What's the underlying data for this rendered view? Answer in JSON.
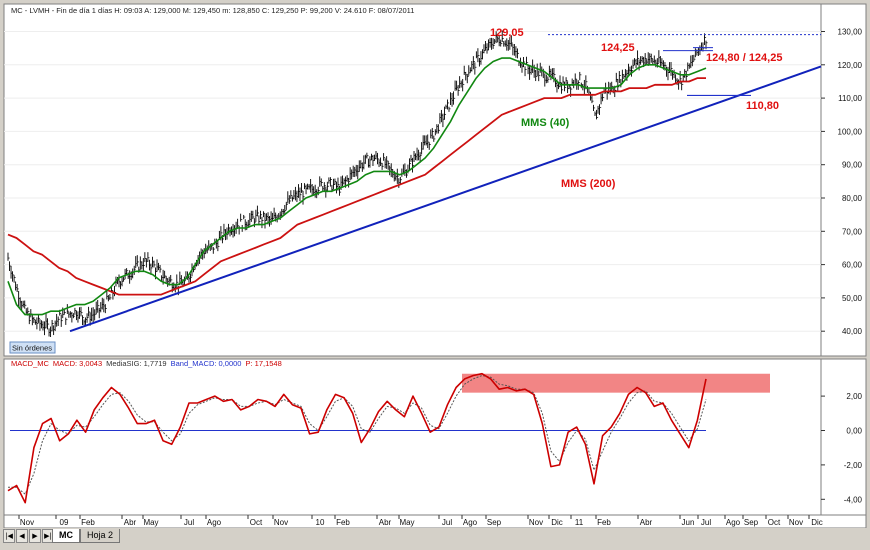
{
  "price_panel": {
    "header": "MC - LVMH - Fin de día 1 días H: 09:03 A: 129,000 M: 129,450 m: 128,850 C: 129,250 P: 99,200 V: 24.610 F: 08/07/2011",
    "status_label": "Sin órdenes"
  },
  "macd_panel": {
    "header_parts": [
      {
        "text": "MACD_MC",
        "color": "#cc0000"
      },
      {
        "text": "MACD: 3,0043",
        "color": "#cc0000"
      },
      {
        "text": "MediaSIG: 1,7719",
        "color": "#333333"
      },
      {
        "text": "Band_MACD: 0,0000",
        "color": "#2233cc"
      },
      {
        "text": "P: 17,1548",
        "color": "#cc0000"
      }
    ]
  },
  "chart_data": [
    {
      "type": "line",
      "subtype": "bar-ohlc-with-moving-averages",
      "x_axis": [
        "Nov",
        "09",
        "Feb",
        "Abr",
        "May",
        "Jul",
        "Ago",
        "Oct",
        "Nov",
        "10",
        "Feb",
        "Abr",
        "May",
        "Jul",
        "Ago",
        "Sep",
        "Nov",
        "Dic",
        "11",
        "Feb",
        "Abr",
        "Jun",
        "Jul",
        "Ago",
        "Sep",
        "Oct",
        "Nov",
        "Dic"
      ],
      "y_ticks": [
        "130,00",
        "120,00",
        "110,00",
        "100,00",
        "90,00",
        "80,00",
        "70,00",
        "60,00",
        "50,00",
        "40,00"
      ],
      "ylim": [
        35,
        132
      ],
      "grid": true,
      "series": [
        {
          "name": "",
          "style": "price-bars",
          "color": "#000000",
          "values": [
            62,
            53,
            46,
            43,
            42,
            41,
            44,
            45,
            46,
            44,
            45,
            47,
            50,
            55,
            57,
            59,
            61,
            60,
            57,
            55,
            54,
            55,
            61,
            64,
            65,
            68,
            71,
            72,
            73,
            74,
            74,
            73,
            76,
            79,
            81,
            82,
            83,
            84,
            84,
            83,
            86,
            89,
            91,
            92,
            91,
            88,
            86,
            89,
            93,
            96,
            99,
            104,
            109,
            114,
            118,
            121,
            124,
            127,
            128,
            126,
            122,
            119,
            118,
            117,
            116,
            114,
            114,
            116,
            113,
            104,
            112,
            113,
            116,
            119,
            121,
            122,
            121,
            120,
            118,
            115,
            119,
            124,
            128
          ]
        },
        {
          "name": "MMS (40)",
          "style": "line",
          "color": "#118811",
          "values": [
            55,
            48,
            45,
            45,
            45,
            46,
            46,
            47,
            48,
            48,
            49,
            51,
            53,
            56,
            57,
            58,
            58,
            57,
            55,
            54,
            54,
            56,
            60,
            64,
            66,
            68,
            70,
            71,
            71,
            72,
            72,
            73,
            74,
            76,
            78,
            80,
            81,
            82,
            82,
            83,
            84,
            85,
            87,
            88,
            88,
            88,
            87,
            88,
            90,
            92,
            95,
            99,
            103,
            108,
            112,
            116,
            119,
            121,
            122,
            122,
            121,
            120,
            119,
            118,
            116,
            114,
            114,
            114,
            113,
            113,
            113,
            113,
            114,
            117,
            119,
            120,
            120,
            119,
            118,
            117,
            117,
            118,
            119
          ]
        },
        {
          "name": "MMS (200)",
          "style": "line",
          "color": "#cc1111",
          "values": [
            69,
            68,
            66,
            64,
            63,
            61,
            59,
            58,
            56,
            55,
            54,
            53,
            52,
            51,
            51,
            51,
            51,
            51,
            51,
            52,
            53,
            54,
            55,
            57,
            59,
            61,
            62,
            63,
            64,
            65,
            66,
            67,
            68,
            70,
            72,
            73,
            74,
            75,
            76,
            77,
            78,
            79,
            80,
            81,
            82,
            83,
            84,
            85,
            86,
            87,
            89,
            91,
            93,
            95,
            97,
            99,
            101,
            103,
            105,
            106,
            107,
            108,
            109,
            110,
            110,
            110,
            111,
            111,
            111,
            111,
            112,
            112,
            112,
            113,
            113,
            113,
            114,
            114,
            114,
            115,
            115,
            116,
            116
          ]
        },
        {
          "name": "",
          "style": "trendline",
          "color": "#1122bb",
          "start": [
            0,
            40
          ],
          "end": [
            1,
            119.5
          ]
        }
      ],
      "levels": [
        {
          "value": 129.05,
          "style": "dotted",
          "color": "#2233cc"
        },
        {
          "value": 124.25,
          "style": "solid",
          "color": "#2233cc"
        },
        {
          "value": 110.8,
          "style": "solid",
          "color": "#2233cc"
        }
      ],
      "annotations": [
        "129,05",
        "124,25",
        "124,80 / 124,25",
        "110,80",
        "MMS (40)",
        "MMS (200)"
      ]
    },
    {
      "type": "line",
      "subtype": "macd",
      "y_ticks": [
        "2,00",
        "0,00",
        "-2,00",
        "-4,00"
      ],
      "ylim": [
        -4.5,
        3.4
      ],
      "grid": true,
      "series": [
        {
          "name": "MACD",
          "color": "#cc0000",
          "values": [
            -3.5,
            -3.2,
            -4.2,
            -1.0,
            0.4,
            0.7,
            -0.6,
            -0.2,
            0.6,
            -0.1,
            1.2,
            1.9,
            2.5,
            2.1,
            1.3,
            0.4,
            0.4,
            0.6,
            -0.6,
            -0.8,
            0.2,
            1.6,
            1.6,
            1.8,
            2.0,
            1.7,
            1.8,
            1.2,
            1.4,
            1.8,
            1.7,
            1.4,
            2.1,
            1.5,
            1.3,
            -0.2,
            -0.1,
            1.2,
            2.1,
            1.9,
            1.0,
            -0.7,
            0.1,
            1.1,
            1.7,
            1.2,
            0.8,
            2.0,
            1.0,
            -0.1,
            0.2,
            1.5,
            2.5,
            3.0,
            3.2,
            3.3,
            3.0,
            2.4,
            2.5,
            2.3,
            2.4,
            2.1,
            0.4,
            -2.1,
            -2.0,
            -0.1,
            0.2,
            -0.8,
            -3.1,
            -0.3,
            0.2,
            1.0,
            2.1,
            2.5,
            2.2,
            1.4,
            1.6,
            0.6,
            -0.2,
            -1.0,
            0.6,
            3.0
          ]
        },
        {
          "name": "MediaSIG",
          "style": "dotted",
          "color": "#555555",
          "values": [
            -3.3,
            -3.3,
            -3.7,
            -2.5,
            -0.6,
            0.4,
            0.0,
            -0.2,
            0.3,
            0.2,
            0.8,
            1.5,
            2.1,
            2.2,
            1.7,
            0.9,
            0.5,
            0.5,
            -0.1,
            -0.6,
            -0.2,
            1.0,
            1.5,
            1.7,
            1.9,
            1.8,
            1.8,
            1.4,
            1.4,
            1.6,
            1.7,
            1.5,
            1.8,
            1.6,
            1.4,
            0.4,
            0.0,
            0.8,
            1.7,
            1.9,
            1.4,
            0.1,
            -0.1,
            0.7,
            1.4,
            1.3,
            1.0,
            1.6,
            1.3,
            0.3,
            0.1,
            1.0,
            2.0,
            2.7,
            3.0,
            3.2,
            3.1,
            2.7,
            2.6,
            2.4,
            2.4,
            2.2,
            1.0,
            -1.2,
            -1.8,
            -0.7,
            0.0,
            -0.5,
            -2.3,
            -1.2,
            -0.1,
            0.7,
            1.6,
            2.2,
            2.3,
            1.7,
            1.6,
            1.0,
            0.2,
            -0.6,
            0.1,
            1.8
          ]
        },
        {
          "name": "Band_MACD",
          "color": "#2233cc",
          "values": [
            0,
            0
          ]
        }
      ],
      "highlight_band": {
        "from": 2.2,
        "to": 3.3,
        "color": "#f07070"
      }
    }
  ],
  "worksheet_tabs": [
    {
      "label": "MC",
      "active": true
    },
    {
      "label": "Hoja 2",
      "active": false
    }
  ],
  "nav_buttons": [
    "|◀",
    "◀",
    "▶",
    "▶|"
  ]
}
